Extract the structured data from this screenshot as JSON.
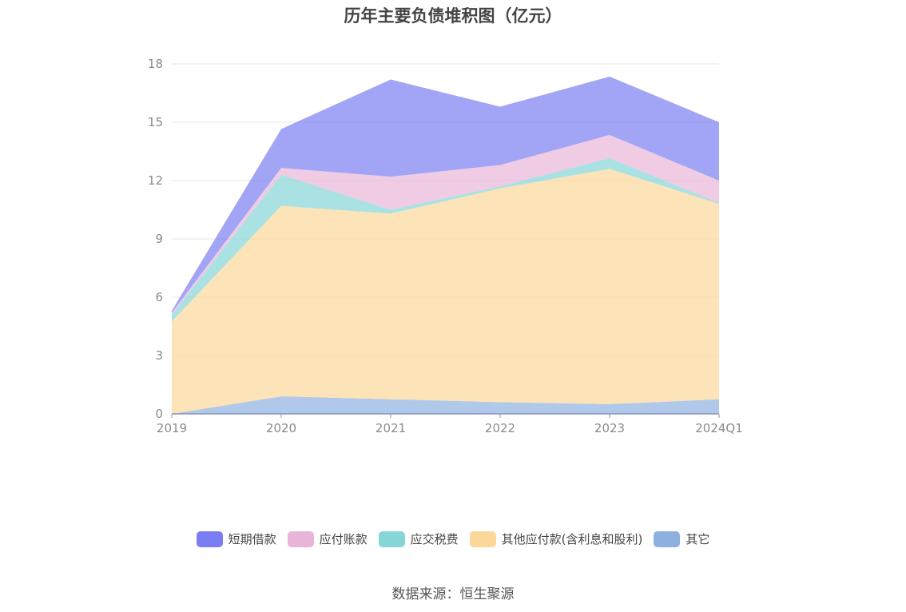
{
  "title": "历年主要负债堆积图（亿元）",
  "source": "数据来源：恒生聚源",
  "colors": {
    "短期借款": "#7b7ef2",
    "应付账款": "#e8b5d8",
    "应交税费": "#86d6d8",
    "其他应付款(含利息和股利)": "#fcd79a",
    "其它": "#8eb0e0"
  },
  "chart_data": {
    "type": "area",
    "stacked": true,
    "categories": [
      "2019",
      "2020",
      "2021",
      "2022",
      "2023",
      "2024Q1"
    ],
    "ylim": [
      0,
      18
    ],
    "yticks": [
      0,
      3,
      6,
      9,
      12,
      15,
      18
    ],
    "grid": true,
    "legend_position": "bottom",
    "series": [
      {
        "name": "其它",
        "values": [
          0.0,
          0.9,
          0.75,
          0.6,
          0.5,
          0.75
        ]
      },
      {
        "name": "其他应付款(含利息和股利)",
        "values": [
          4.75,
          9.8,
          9.55,
          11.0,
          12.1,
          10.05
        ]
      },
      {
        "name": "应交税费",
        "values": [
          0.35,
          1.6,
          0.2,
          0.1,
          0.55,
          0.05
        ]
      },
      {
        "name": "应付账款",
        "values": [
          0.1,
          0.35,
          1.7,
          1.1,
          1.2,
          1.15
        ]
      },
      {
        "name": "短期借款",
        "values": [
          0.1,
          2.0,
          5.0,
          3.0,
          3.0,
          3.0
        ]
      }
    ],
    "legend_order": [
      "短期借款",
      "应付账款",
      "应交税费",
      "其他应付款(含利息和股利)",
      "其它"
    ]
  }
}
